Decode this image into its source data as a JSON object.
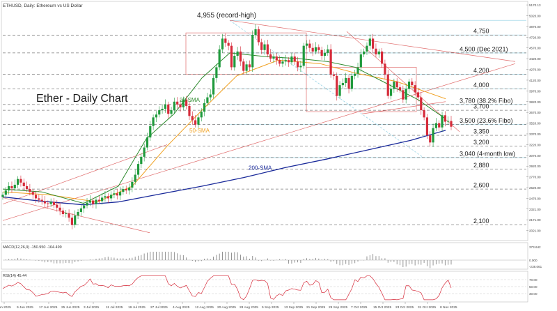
{
  "header": {
    "label": "ETHUSD, Daily: Ethereum vs US Dollar"
  },
  "chart_title": "Ether - Daily Chart",
  "colors": {
    "bull": "#1f9a3c",
    "bear": "#d62b3a",
    "sma20": "#2d8a2d",
    "sma50": "#f0a020",
    "sma200": "#1a2a9a",
    "trend": "#e06b6b",
    "fibo": "#8ecfe3",
    "level": "#3a3a3a"
  },
  "chart_data": {
    "type": "candlestick",
    "symbol": "ETHUSD",
    "timeframe": "Daily",
    "ylim": [
      1900,
      5200
    ],
    "y_ticks": [
      "5170.13",
      "5020.00",
      "4870.00",
      "4720.00",
      "4570.00",
      "4420.00",
      "4270.00",
      "4120.00",
      "3970.00",
      "3820.00",
      "3670.00",
      "3520.00",
      "3370.00",
      "3220.00",
      "3070.00",
      "2920.00",
      "2770.00",
      "2620.00",
      "2470.00",
      "2321.00",
      "2171.00",
      "2021.00"
    ],
    "x_ticks": [
      "1 Jun 2025",
      "9 Jun 2025",
      "17 Jun 2025",
      "25 Jun 2025",
      "3 Jul 2025",
      "11 Jul 2025",
      "19 Jul 2025",
      "27 Jul 2025",
      "4 Aug 2025",
      "12 Aug 2025",
      "20 Aug 2025",
      "28 Aug 2025",
      "5 Sep 2025",
      "13 Sep 2025",
      "21 Sep 2025",
      "29 Sep 2025",
      "7 Oct 2025",
      "15 Oct 2025",
      "23 Oct 2025",
      "31 Oct 2025",
      "8 Nov 2025"
    ],
    "closes": [
      2520,
      2580,
      2640,
      2610,
      2660,
      2740,
      2690,
      2640,
      2600,
      2560,
      2520,
      2470,
      2450,
      2430,
      2400,
      2390,
      2420,
      2380,
      2340,
      2300,
      2250,
      2260,
      2200,
      2100,
      2230,
      2280,
      2330,
      2370,
      2410,
      2440,
      2390,
      2450,
      2430,
      2480,
      2500,
      2470,
      2520,
      2540,
      2510,
      2560,
      2600,
      2580,
      2620,
      2700,
      2800,
      2950,
      3050,
      3180,
      3320,
      3480,
      3600,
      3640,
      3700,
      3720,
      3780,
      3650,
      3700,
      3820,
      3780,
      3740,
      3850,
      3760,
      3620,
      3560,
      3500,
      3600,
      3680,
      3800,
      3880,
      3920,
      4150,
      4300,
      4550,
      4700,
      4640,
      4600,
      4300,
      4460,
      4520,
      4380,
      4250,
      4340,
      4300,
      4750,
      4830,
      4650,
      4540,
      4620,
      4480,
      4420,
      4450,
      4400,
      4350,
      4380,
      4400,
      4370,
      4450,
      4380,
      4300,
      4320,
      4600,
      4630,
      4570,
      4520,
      4580,
      4540,
      4460,
      4500,
      4550,
      4200,
      4180,
      3900,
      4050,
      4080,
      4150,
      4000,
      4180,
      4210,
      4300,
      4480,
      4520,
      4600,
      4700,
      4560,
      4480,
      4520,
      4350,
      4200,
      3900,
      4000,
      4100,
      4020,
      3980,
      3850,
      4000,
      4100,
      4050,
      3950,
      3880,
      3700,
      3600,
      3350,
      3250,
      3450,
      3520,
      3460,
      3630,
      3540,
      3550,
      3470
    ],
    "series": [
      {
        "name": "20-SMA",
        "values": []
      },
      {
        "name": "50-SMA",
        "values": []
      },
      {
        "name": "200-SMA",
        "values": []
      }
    ],
    "levels": [
      {
        "value": 4750,
        "label": "4,750"
      },
      {
        "value": 4500,
        "label": "4,500 (Dec 2021)"
      },
      {
        "value": 4200,
        "label": "4,200"
      },
      {
        "value": 4000,
        "label": "4,000"
      },
      {
        "value": 3780,
        "label": "3,780 (38.2% Fibo)"
      },
      {
        "value": 3700,
        "label": "3,700"
      },
      {
        "value": 3500,
        "label": "3,500 (23.6% Fibo)"
      },
      {
        "value": 3350,
        "label": "3,350"
      },
      {
        "value": 3200,
        "label": "3,200"
      },
      {
        "value": 3040,
        "label": "3,040 (4-month low)"
      },
      {
        "value": 2880,
        "label": "2,880"
      },
      {
        "value": 2600,
        "label": "2,600"
      },
      {
        "value": 2100,
        "label": "2,100"
      }
    ],
    "annotations": [
      {
        "label": "4,955 (record-high)"
      },
      {
        "label": "20-SMA"
      },
      {
        "label": "50-SMA"
      },
      {
        "label": "200-SMA"
      }
    ]
  },
  "macd": {
    "label": "MACD(12,26,9) -150.950 -164.499",
    "ticks": [
      "373.642",
      "0.000",
      "-238.061"
    ]
  },
  "rsi": {
    "label": "RSI(14) 45.44",
    "ticks": [
      "70.00",
      "50.00",
      "30.00"
    ]
  }
}
